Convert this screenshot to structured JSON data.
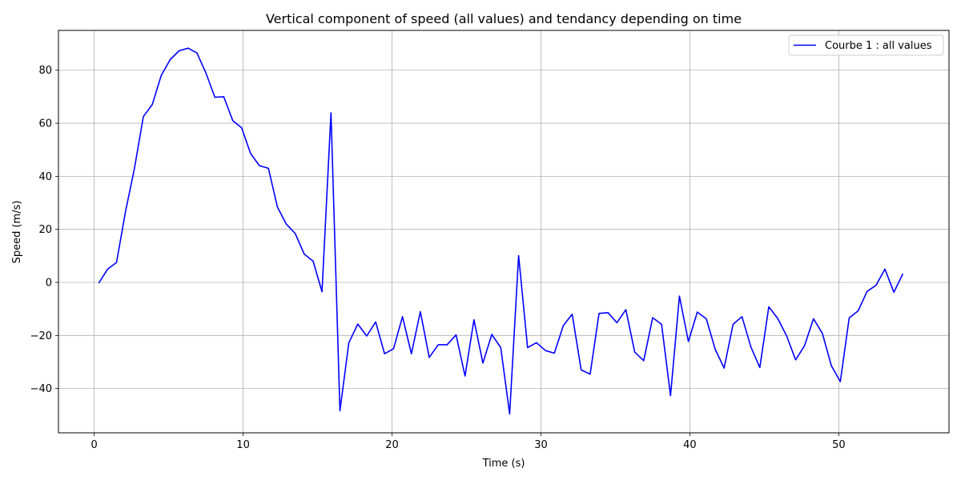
{
  "chart_data": {
    "type": "line",
    "title": "Vertical component of speed (all values) and tendancy depending on time",
    "xlabel": "Time (s)",
    "ylabel": "Speed (m/s)",
    "xlim": [
      -2.4,
      57.4
    ],
    "ylim": [
      -56.7,
      95.0
    ],
    "xticks": [
      0,
      10,
      20,
      30,
      40,
      50
    ],
    "yticks": [
      -40,
      -20,
      0,
      20,
      40,
      60,
      80
    ],
    "xtick_labels": [
      "0",
      "10",
      "20",
      "30",
      "40",
      "50"
    ],
    "ytick_labels": [
      "−40",
      "−20",
      "0",
      "20",
      "40",
      "60",
      "80"
    ],
    "grid": true,
    "legend_position": "top-right",
    "series": [
      {
        "name": "Courbe 1 : all values",
        "color": "#0000ff",
        "x": [
          0.3,
          0.9,
          1.5,
          2.1,
          2.7,
          3.3,
          3.9,
          4.5,
          5.1,
          5.7,
          6.3,
          6.9,
          7.5,
          8.1,
          8.7,
          9.3,
          9.9,
          10.5,
          11.1,
          11.7,
          12.3,
          12.9,
          13.5,
          14.1,
          14.7,
          15.3,
          15.9,
          16.5,
          17.1,
          17.7,
          18.3,
          18.9,
          19.5,
          20.1,
          20.7,
          21.3,
          21.9,
          22.5,
          23.1,
          23.7,
          24.3,
          24.9,
          25.5,
          26.1,
          26.7,
          27.3,
          27.9,
          28.5,
          29.1,
          29.7,
          30.3,
          30.9,
          31.5,
          32.1,
          32.7,
          33.3,
          33.9,
          34.5,
          35.1,
          35.7,
          36.3,
          36.9,
          37.5,
          38.1,
          38.7,
          39.3,
          39.9,
          40.5,
          41.1,
          41.7,
          42.3,
          42.9,
          43.5,
          44.1,
          44.7,
          45.3,
          45.9,
          46.5,
          47.1,
          47.7,
          48.3,
          48.9,
          49.5,
          50.1,
          50.7,
          51.3,
          51.9,
          52.5,
          53.1,
          53.7,
          54.3
        ],
        "y": [
          -0.3,
          5.0,
          7.5,
          26.7,
          42.8,
          62.5,
          67.1,
          78.0,
          84.0,
          87.3,
          88.3,
          86.5,
          79.0,
          69.8,
          70.0,
          61.0,
          58.3,
          48.6,
          44.0,
          43.0,
          28.4,
          22.0,
          18.4,
          10.7,
          8.0,
          -3.5,
          63.9,
          -48.4,
          -22.7,
          -15.7,
          -20.2,
          -14.9,
          -26.9,
          -25.0,
          -12.9,
          -26.9,
          -11.0,
          -28.3,
          -23.5,
          -23.5,
          -19.8,
          -35.3,
          -14.1,
          -30.4,
          -19.6,
          -24.6,
          -49.6,
          10.1,
          -24.6,
          -22.7,
          -25.7,
          -26.7,
          -16.3,
          -12.0,
          -33.0,
          -34.6,
          -11.7,
          -11.4,
          -15.2,
          -10.3,
          -26.3,
          -29.5,
          -13.3,
          -15.8,
          -42.7,
          -5.2,
          -22.3,
          -11.2,
          -13.7,
          -25.2,
          -32.3,
          -15.8,
          -12.9,
          -24.4,
          -32.1,
          -9.2,
          -13.6,
          -20.2,
          -29.2,
          -23.9,
          -13.7,
          -19.2,
          -31.4,
          -37.4,
          -13.4,
          -10.7,
          -3.4,
          -1.1,
          5.0,
          -3.7,
          3.3
        ]
      }
    ]
  }
}
